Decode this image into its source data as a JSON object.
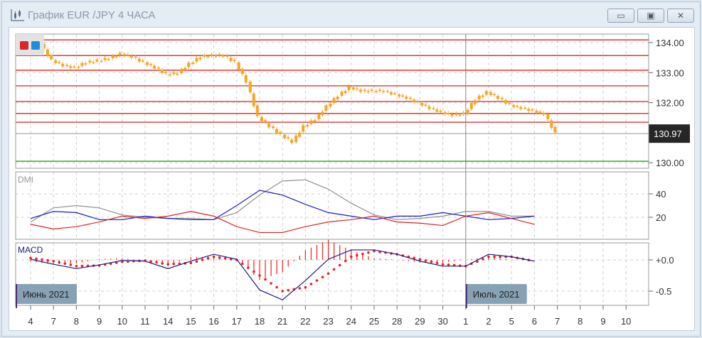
{
  "window": {
    "title": "График EUR /JPY  4 ЧАСА",
    "buttons": [
      {
        "name": "minimize",
        "glyph": "▭"
      },
      {
        "name": "restore",
        "glyph": "▣"
      },
      {
        "name": "close",
        "glyph": "✕"
      }
    ]
  },
  "colors": {
    "candle": "#f5a623",
    "level_line": "#e02020",
    "support_line": "#20a020",
    "adx": "#909090",
    "plus_di": "#1a1acc",
    "minus_di": "#e02020",
    "macd": "#1a1a80",
    "signal": "#ee2020",
    "month_label_bg": "#86a2b4"
  },
  "chart_data": [
    {
      "type": "candlestick",
      "title": "",
      "y_ticks": [
        "134.00",
        "133.00",
        "132.00",
        "130.00"
      ],
      "ylim": [
        129.95,
        134.2
      ],
      "current_price": "130.97",
      "level_lines": [
        134.09,
        133.57,
        133.08,
        132.56,
        132.04,
        131.64,
        131.35
      ],
      "support_line": 130.05,
      "x_ticks": [
        "4",
        "7",
        "8",
        "9",
        "10",
        "11",
        "14",
        "15",
        "16",
        "17",
        "18",
        "21",
        "22",
        "23",
        "24",
        "25",
        "28",
        "29",
        "30",
        "1",
        "2",
        "5",
        "6",
        "7",
        "8",
        "9",
        "10"
      ],
      "month_labels": [
        {
          "label": "Июнь 2021",
          "at_tick": "4"
        },
        {
          "label": "Июль 2021",
          "at_tick": "1"
        }
      ],
      "price_by_day": [
        {
          "day": "4",
          "values": [
            133.95,
            133.41
          ]
        },
        {
          "day": "7",
          "values": [
            133.24,
            133.17
          ]
        },
        {
          "day": "8",
          "values": [
            133.34,
            133.39
          ]
        },
        {
          "day": "9",
          "values": [
            133.48,
            133.62
          ]
        },
        {
          "day": "10",
          "values": [
            133.53,
            133.34
          ]
        },
        {
          "day": "11",
          "values": [
            133.17,
            132.94
          ]
        },
        {
          "day": "14",
          "values": [
            132.98,
            133.29
          ]
        },
        {
          "day": "15",
          "values": [
            133.53,
            133.57
          ]
        },
        {
          "day": "16",
          "values": [
            133.57,
            133.34
          ]
        },
        {
          "day": "17",
          "values": [
            132.7,
            131.52
          ]
        },
        {
          "day": "18",
          "values": [
            131.21,
            130.93
          ]
        },
        {
          "day": "21",
          "values": [
            130.69,
            131.21
          ]
        },
        {
          "day": "22",
          "values": [
            131.45,
            131.87
          ]
        },
        {
          "day": "23",
          "values": [
            132.23,
            132.51
          ]
        },
        {
          "day": "24",
          "values": [
            132.39,
            132.39
          ]
        },
        {
          "day": "25",
          "values": [
            132.39,
            132.27
          ]
        },
        {
          "day": "28",
          "values": [
            132.16,
            131.99
          ]
        },
        {
          "day": "29",
          "values": [
            131.82,
            131.68
          ]
        },
        {
          "day": "30",
          "values": [
            131.59,
            131.63
          ]
        },
        {
          "day": "1",
          "values": [
            132.11,
            132.35
          ]
        },
        {
          "day": "2",
          "values": [
            132.16,
            131.92
          ]
        },
        {
          "day": "5",
          "values": [
            131.82,
            131.73
          ]
        },
        {
          "day": "6",
          "values": [
            131.63,
            130.97
          ]
        }
      ]
    },
    {
      "type": "line",
      "title": "DMI",
      "y_ticks": [
        "40",
        "20"
      ],
      "series": [
        {
          "key": "adx",
          "values": [
            16,
            28,
            30,
            28,
            22,
            20,
            19,
            19,
            18,
            24,
            39,
            51,
            52,
            44,
            32,
            22,
            18,
            19,
            21,
            25,
            25,
            21,
            21
          ]
        },
        {
          "key": "plus_di",
          "values": [
            19,
            25,
            24,
            18,
            18,
            21,
            19,
            18,
            18,
            30,
            43,
            39,
            31,
            24,
            21,
            18,
            21,
            21,
            24,
            21,
            18,
            19,
            21
          ]
        },
        {
          "key": "minus_di",
          "values": [
            14,
            10,
            12,
            16,
            21,
            19,
            21,
            25,
            21,
            12,
            7,
            7,
            12,
            16,
            18,
            21,
            16,
            15,
            13,
            21,
            24,
            19,
            14
          ]
        }
      ]
    },
    {
      "type": "line",
      "title": "MACD",
      "y_ticks": [
        "+0.0",
        "-0.5"
      ],
      "series": [
        {
          "key": "macd",
          "values": [
            0.01,
            -0.07,
            -0.14,
            -0.08,
            -0.01,
            -0.02,
            -0.14,
            -0.02,
            0.09,
            0.01,
            -0.48,
            -0.64,
            -0.33,
            0.01,
            0.16,
            0.16,
            0.09,
            -0.02,
            -0.1,
            -0.1,
            0.09,
            0.05,
            -0.02
          ]
        },
        {
          "key": "signal",
          "values": [
            0.03,
            -0.02,
            -0.1,
            -0.09,
            -0.03,
            -0.01,
            -0.07,
            -0.05,
            0.05,
            0,
            -0.25,
            -0.5,
            -0.44,
            -0.22,
            0.05,
            0.14,
            0.09,
            0.01,
            -0.07,
            -0.1,
            0.05,
            0.05,
            -0.02
          ]
        }
      ]
    }
  ]
}
